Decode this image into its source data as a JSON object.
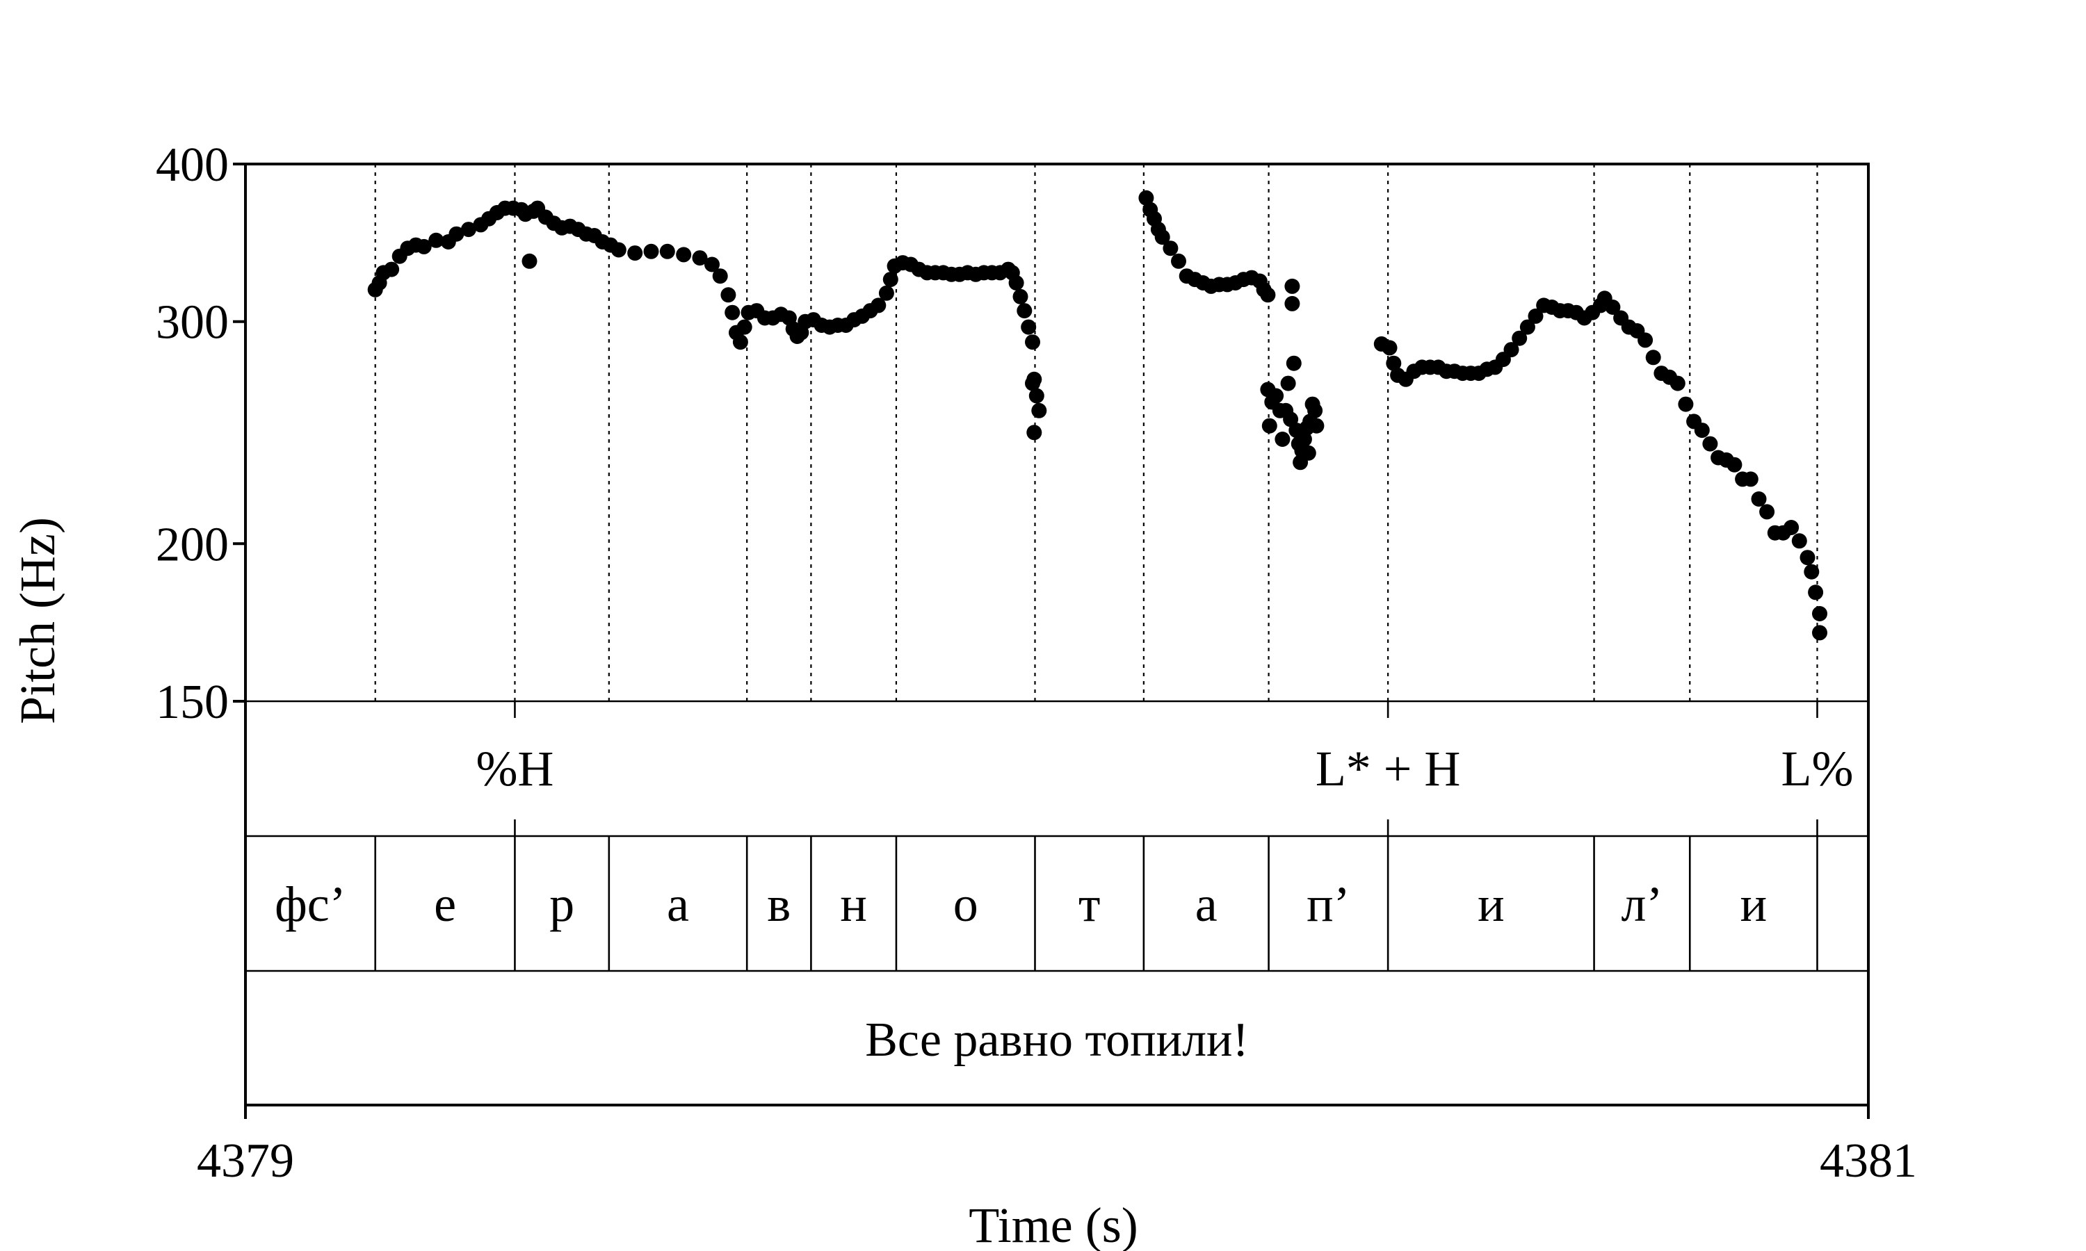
{
  "chart_data": {
    "type": "scatter",
    "xlabel": "Time (s)",
    "ylabel": "Pitch (Hz)",
    "xlim": [
      4379,
      4381
    ],
    "ylim": [
      150,
      400
    ],
    "y_scale": "log",
    "xticks": [
      {
        "value": 4379,
        "label": "4379"
      },
      {
        "value": 4381,
        "label": "4381"
      }
    ],
    "yticks": [
      {
        "value": 150,
        "label": "150"
      },
      {
        "value": 200,
        "label": "200"
      },
      {
        "value": 300,
        "label": "300"
      },
      {
        "value": 400,
        "label": "400"
      }
    ],
    "boundaries": [
      4379.16,
      4379.332,
      4379.448,
      4379.618,
      4379.697,
      4379.802,
      4379.973,
      4380.107,
      4380.261,
      4380.408,
      4380.662,
      4380.78,
      4380.937
    ],
    "tones": [
      {
        "label": "%H",
        "time": 4379.332
      },
      {
        "label": "L* + H",
        "time": 4380.408
      },
      {
        "label": "L%",
        "time": 4380.937
      }
    ],
    "segments": [
      {
        "label": "фс’",
        "start": 4379.0,
        "end": 4379.16
      },
      {
        "label": "е",
        "start": 4379.16,
        "end": 4379.332
      },
      {
        "label": "р",
        "start": 4379.332,
        "end": 4379.448
      },
      {
        "label": "а",
        "start": 4379.448,
        "end": 4379.618
      },
      {
        "label": "в",
        "start": 4379.618,
        "end": 4379.697
      },
      {
        "label": "н",
        "start": 4379.697,
        "end": 4379.802
      },
      {
        "label": "о",
        "start": 4379.802,
        "end": 4379.973
      },
      {
        "label": "т",
        "start": 4379.973,
        "end": 4380.107
      },
      {
        "label": "а",
        "start": 4380.107,
        "end": 4380.261
      },
      {
        "label": "п’",
        "start": 4380.261,
        "end": 4380.408
      },
      {
        "label": "и",
        "start": 4380.408,
        "end": 4380.662
      },
      {
        "label": "л’",
        "start": 4380.662,
        "end": 4380.78
      },
      {
        "label": "и",
        "start": 4380.78,
        "end": 4380.937
      },
      {
        "label": "",
        "start": 4380.937,
        "end": 4381.0
      }
    ],
    "sentence": "Все равно топили!",
    "series": [
      {
        "values": [
          [
            4379.16,
            318
          ],
          [
            4379.165,
            322
          ],
          [
            4379.17,
            328
          ],
          [
            4379.18,
            330
          ],
          [
            4379.19,
            338
          ],
          [
            4379.2,
            343
          ],
          [
            4379.21,
            345
          ],
          [
            4379.22,
            344
          ],
          [
            4379.235,
            348
          ],
          [
            4379.25,
            347
          ],
          [
            4379.26,
            352
          ],
          [
            4379.275,
            355
          ],
          [
            4379.29,
            358
          ],
          [
            4379.3,
            362
          ],
          [
            4379.31,
            366
          ],
          [
            4379.32,
            369
          ],
          [
            4379.33,
            369
          ],
          [
            4379.34,
            368
          ],
          [
            4379.345,
            365
          ],
          [
            4379.35,
            335
          ],
          [
            4379.355,
            367
          ],
          [
            4379.36,
            369
          ],
          [
            4379.37,
            363
          ],
          [
            4379.38,
            359
          ],
          [
            4379.39,
            356
          ],
          [
            4379.4,
            357
          ],
          [
            4379.41,
            355
          ],
          [
            4379.42,
            352
          ],
          [
            4379.43,
            351
          ],
          [
            4379.44,
            347
          ],
          [
            4379.45,
            345
          ],
          [
            4379.46,
            342
          ],
          [
            4379.48,
            340
          ],
          [
            4379.5,
            341
          ],
          [
            4379.52,
            341
          ],
          [
            4379.54,
            339
          ],
          [
            4379.56,
            337
          ],
          [
            4379.575,
            333
          ],
          [
            4379.585,
            326
          ],
          [
            4379.595,
            315
          ],
          [
            4379.6,
            305
          ],
          [
            4379.605,
            294
          ],
          [
            4379.61,
            289
          ],
          [
            4379.615,
            297
          ],
          [
            4379.62,
            305
          ],
          [
            4379.63,
            306
          ],
          [
            4379.64,
            302
          ],
          [
            4379.65,
            302
          ],
          [
            4379.66,
            304
          ],
          [
            4379.67,
            302
          ],
          [
            4379.675,
            296
          ],
          [
            4379.68,
            292
          ],
          [
            4379.685,
            294
          ],
          [
            4379.69,
            300
          ],
          [
            4379.7,
            301
          ],
          [
            4379.71,
            298
          ],
          [
            4379.72,
            297
          ],
          [
            4379.73,
            298
          ],
          [
            4379.74,
            298
          ],
          [
            4379.75,
            301
          ],
          [
            4379.76,
            303
          ],
          [
            4379.77,
            306
          ],
          [
            4379.78,
            309
          ],
          [
            4379.79,
            316
          ],
          [
            4379.795,
            324
          ],
          [
            4379.8,
            332
          ],
          [
            4379.81,
            334
          ],
          [
            4379.82,
            333
          ],
          [
            4379.83,
            330
          ],
          [
            4379.84,
            328
          ],
          [
            4379.85,
            328
          ],
          [
            4379.86,
            328
          ],
          [
            4379.87,
            327
          ],
          [
            4379.88,
            327
          ],
          [
            4379.89,
            328
          ],
          [
            4379.9,
            327
          ],
          [
            4379.91,
            328
          ],
          [
            4379.92,
            328
          ],
          [
            4379.93,
            328
          ],
          [
            4379.94,
            330
          ],
          [
            4379.945,
            328
          ],
          [
            4379.95,
            322
          ],
          [
            4379.955,
            314
          ],
          [
            4379.96,
            306
          ],
          [
            4379.965,
            297
          ],
          [
            4379.97,
            289
          ],
          [
            4379.972,
            270
          ],
          [
            4379.975,
            262
          ],
          [
            4379.978,
            255
          ],
          [
            4379.97,
            268
          ],
          [
            4379.972,
            245
          ],
          [
            4380.11,
            376
          ],
          [
            4380.115,
            368
          ],
          [
            4380.12,
            362
          ],
          [
            4380.125,
            355
          ],
          [
            4380.13,
            350
          ],
          [
            4380.14,
            343
          ],
          [
            4380.15,
            335
          ],
          [
            4380.16,
            326
          ],
          [
            4380.17,
            324
          ],
          [
            4380.18,
            322
          ],
          [
            4380.19,
            320
          ],
          [
            4380.2,
            321
          ],
          [
            4380.21,
            321
          ],
          [
            4380.22,
            322
          ],
          [
            4380.23,
            324
          ],
          [
            4380.24,
            325
          ],
          [
            4380.25,
            323
          ],
          [
            4380.255,
            318
          ],
          [
            4380.26,
            315
          ],
          [
            4380.26,
            265
          ],
          [
            4380.262,
            248
          ],
          [
            4380.265,
            259
          ],
          [
            4380.27,
            262
          ],
          [
            4380.275,
            255
          ],
          [
            4380.278,
            242
          ],
          [
            4380.282,
            255
          ],
          [
            4380.285,
            268
          ],
          [
            4380.288,
            251
          ],
          [
            4380.29,
            320
          ],
          [
            4380.29,
            310
          ],
          [
            4380.292,
            278
          ],
          [
            4380.295,
            246
          ],
          [
            4380.298,
            240
          ],
          [
            4380.3,
            232
          ],
          [
            4380.302,
            237
          ],
          [
            4380.305,
            242
          ],
          [
            4380.308,
            247
          ],
          [
            4380.31,
            236
          ],
          [
            4380.312,
            250
          ],
          [
            4380.315,
            258
          ],
          [
            4380.318,
            255
          ],
          [
            4380.32,
            248
          ],
          [
            4380.4,
            288
          ],
          [
            4380.41,
            286
          ],
          [
            4380.415,
            278
          ],
          [
            4380.42,
            272
          ],
          [
            4380.43,
            270
          ],
          [
            4380.44,
            274
          ],
          [
            4380.45,
            276
          ],
          [
            4380.46,
            276
          ],
          [
            4380.47,
            276
          ],
          [
            4380.48,
            274
          ],
          [
            4380.49,
            274
          ],
          [
            4380.5,
            273
          ],
          [
            4380.51,
            273
          ],
          [
            4380.52,
            273
          ],
          [
            4380.53,
            275
          ],
          [
            4380.54,
            276
          ],
          [
            4380.55,
            280
          ],
          [
            4380.56,
            285
          ],
          [
            4380.57,
            291
          ],
          [
            4380.58,
            297
          ],
          [
            4380.59,
            303
          ],
          [
            4380.6,
            309
          ],
          [
            4380.61,
            308
          ],
          [
            4380.62,
            306
          ],
          [
            4380.63,
            306
          ],
          [
            4380.64,
            305
          ],
          [
            4380.65,
            302
          ],
          [
            4380.66,
            305
          ],
          [
            4380.67,
            309
          ],
          [
            4380.675,
            313
          ],
          [
            4380.685,
            308
          ],
          [
            4380.695,
            302
          ],
          [
            4380.705,
            297
          ],
          [
            4380.715,
            295
          ],
          [
            4380.725,
            290
          ],
          [
            4380.735,
            281
          ],
          [
            4380.745,
            273
          ],
          [
            4380.755,
            271
          ],
          [
            4380.765,
            268
          ],
          [
            4380.775,
            258
          ],
          [
            4380.785,
            250
          ],
          [
            4380.795,
            246
          ],
          [
            4380.805,
            240
          ],
          [
            4380.815,
            234
          ],
          [
            4380.825,
            233
          ],
          [
            4380.835,
            231
          ],
          [
            4380.845,
            225
          ],
          [
            4380.855,
            225
          ],
          [
            4380.865,
            217
          ],
          [
            4380.875,
            212
          ],
          [
            4380.885,
            204
          ],
          [
            4380.895,
            204
          ],
          [
            4380.905,
            206
          ],
          [
            4380.915,
            201
          ],
          [
            4380.925,
            195
          ],
          [
            4380.93,
            190
          ],
          [
            4380.935,
            183
          ],
          [
            4380.94,
            176
          ],
          [
            4380.94,
            170
          ]
        ]
      }
    ]
  }
}
